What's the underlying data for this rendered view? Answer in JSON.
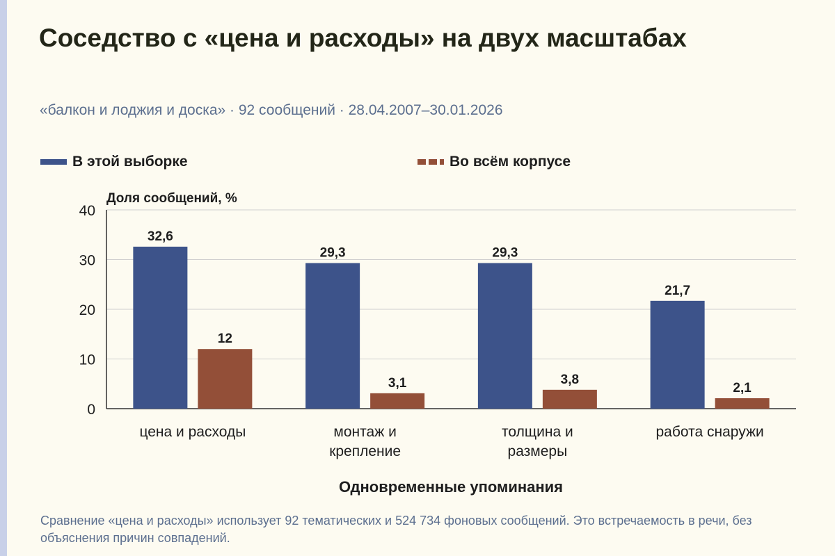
{
  "page": {
    "title": "Соседство с «цена и расходы» на двух масштабах",
    "subtitle": "«балкон и лоджия и доска» · 92 сообщений · 28.04.2007–30.01.2026",
    "footnote": "Сравнение «цена и расходы» использует 92 тематических и 524 734 фоновых сообщений. Это встречаемость в речи, без объяснения причин совпадений."
  },
  "colors": {
    "sample": "#3d538a",
    "corpus": "#934f38",
    "grid": "#cfcfcf",
    "text": "#1e1e1e"
  },
  "chart_data": {
    "type": "bar",
    "title": "",
    "xlabel": "Одновременные упоминания",
    "ylabel": "Доля сообщений, %",
    "ylim": [
      0,
      40
    ],
    "yticks": [
      "0",
      "10",
      "20",
      "30",
      "40"
    ],
    "grid": true,
    "legend_position": "top",
    "categories": [
      [
        "цена и расходы"
      ],
      [
        "монтаж и",
        "крепление"
      ],
      [
        "толщина и",
        "размеры"
      ],
      [
        "работа снаружи"
      ]
    ],
    "series": [
      {
        "name": "В этой выборке",
        "values": [
          32.6,
          29.3,
          29.3,
          21.7
        ],
        "labels": [
          "32,6",
          "29,3",
          "29,3",
          "21,7"
        ]
      },
      {
        "name": "Во всём корпусе",
        "values": [
          12,
          3.1,
          3.8,
          2.1
        ],
        "labels": [
          "12",
          "3,1",
          "3,8",
          "2,1"
        ]
      }
    ]
  }
}
